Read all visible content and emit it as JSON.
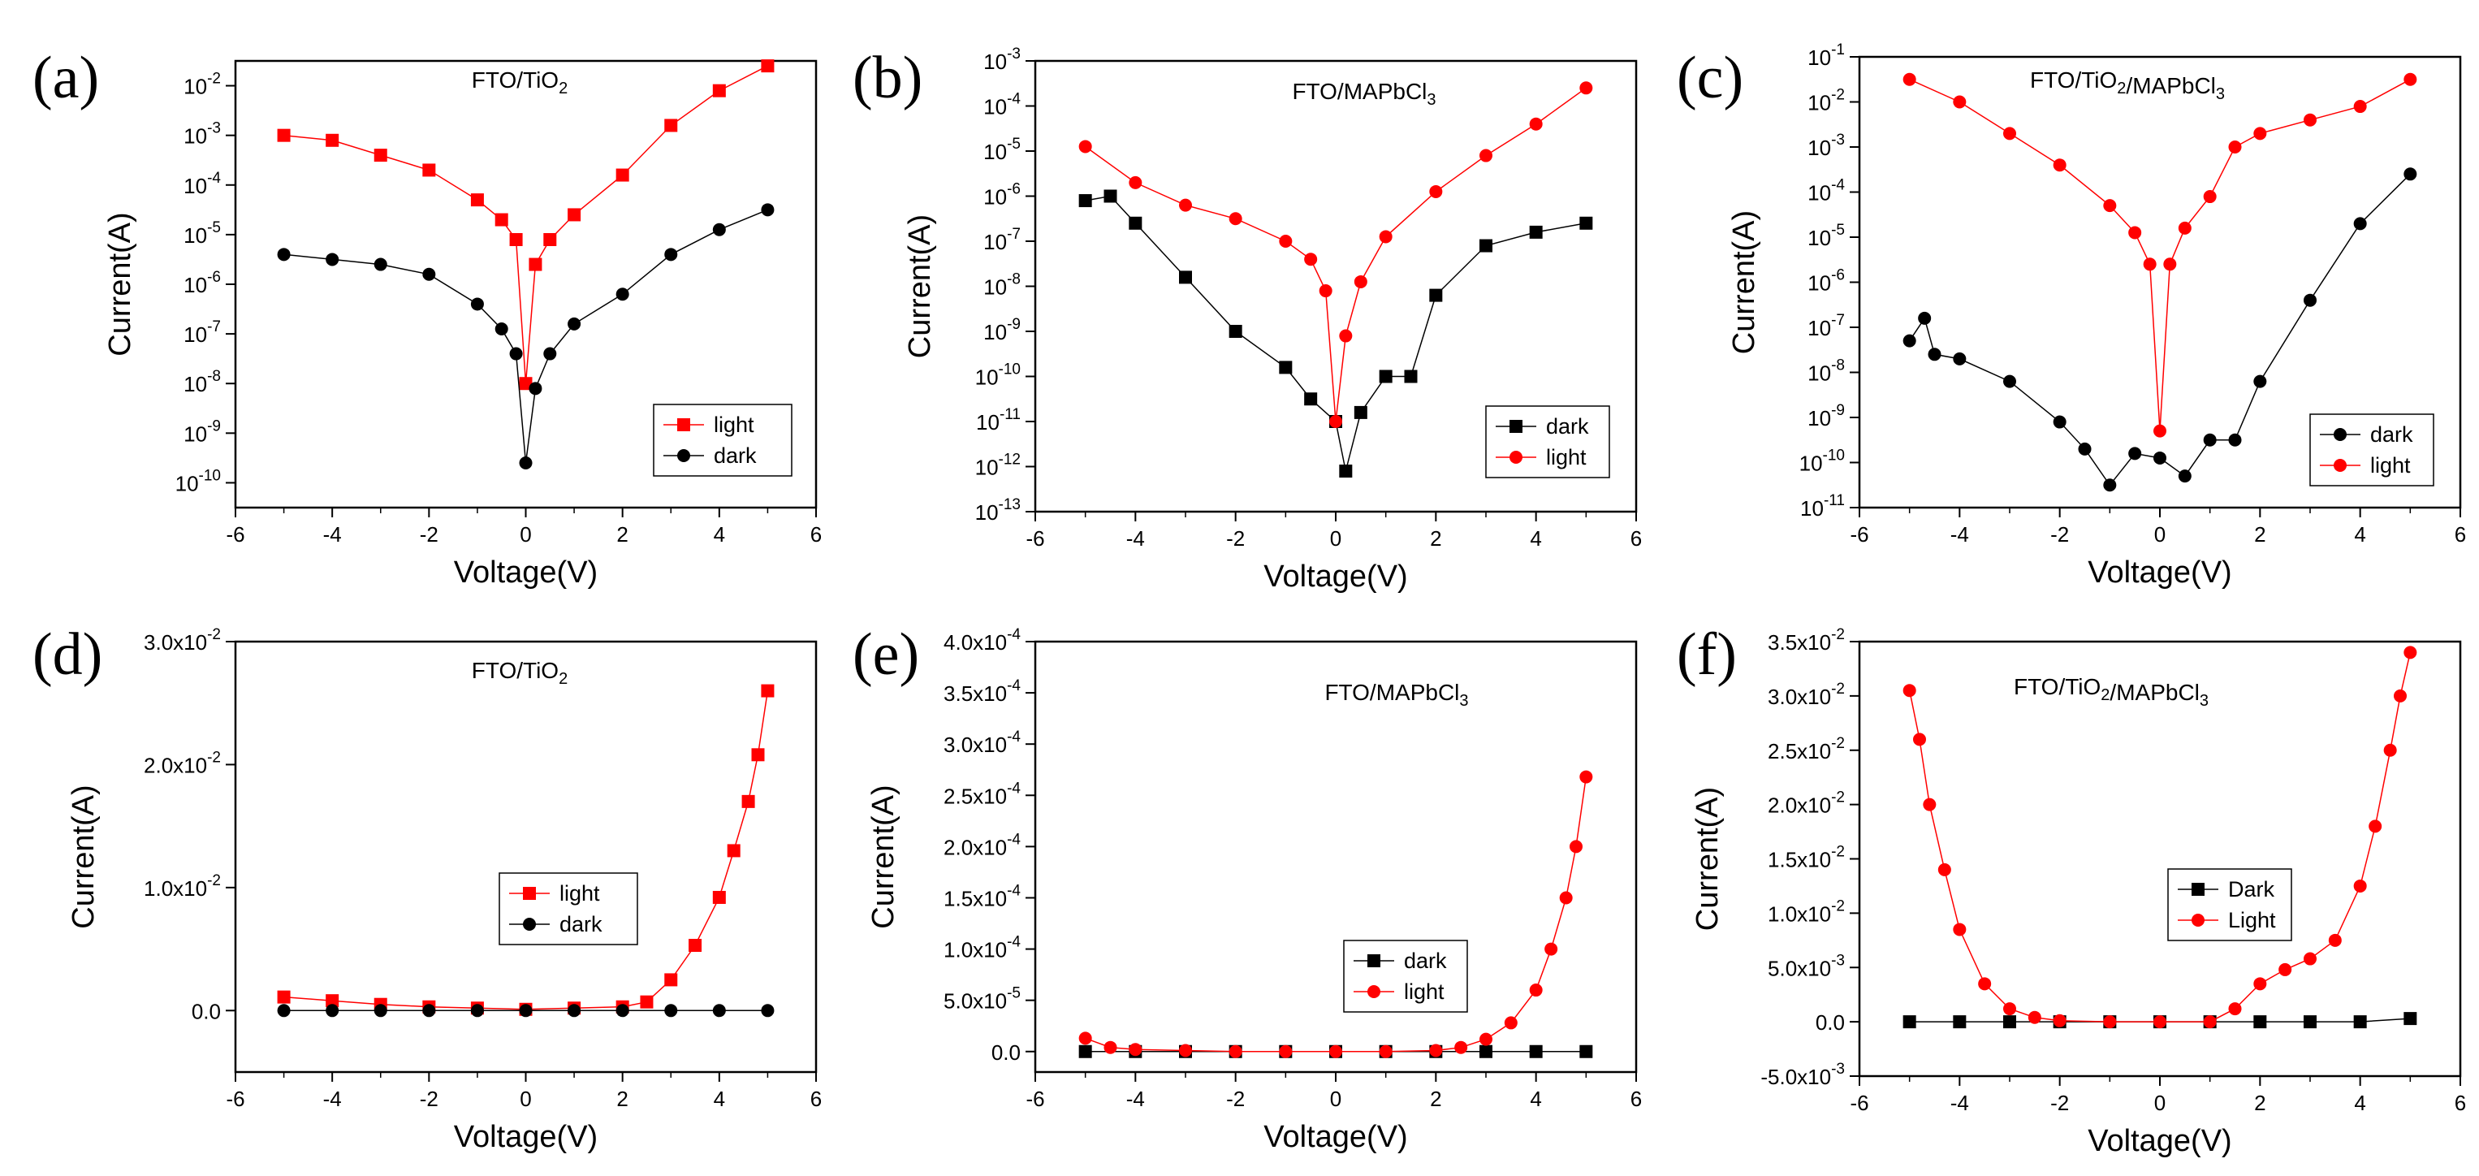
{
  "chart_data": [
    {
      "panel": "(a)",
      "type": "scatter",
      "title": "FTO/TiO2",
      "xlabel": "Voltage(V)",
      "ylabel": "Current(A)",
      "yscale": "log",
      "xlim": [
        -6,
        6
      ],
      "ylim_exp": [
        -10.5,
        -1.5
      ],
      "xticks": [
        "-6",
        "-4",
        "-2",
        "0",
        "2",
        "4",
        "6"
      ],
      "yticks_exp": [
        -10,
        -9,
        -8,
        -7,
        -6,
        -5,
        -4,
        -3,
        -2
      ],
      "legend_position": "bottom-right",
      "series": [
        {
          "name": "light",
          "color": "#ff0000",
          "marker": "square",
          "x": [
            -5,
            -4,
            -3,
            -2,
            -1,
            -0.5,
            -0.2,
            0,
            0.2,
            0.5,
            1,
            2,
            3,
            4,
            5
          ],
          "log10_y": [
            -3,
            -3.1,
            -3.4,
            -3.7,
            -4.3,
            -4.7,
            -5.1,
            -8,
            -5.6,
            -5.1,
            -4.6,
            -3.8,
            -2.8,
            -2.1,
            -1.6
          ]
        },
        {
          "name": "dark",
          "color": "#000000",
          "marker": "circle",
          "x": [
            -5,
            -4,
            -3,
            -2,
            -1,
            -0.5,
            -0.2,
            0,
            0.2,
            0.5,
            1,
            2,
            3,
            4,
            5
          ],
          "log10_y": [
            -5.4,
            -5.5,
            -5.6,
            -5.8,
            -6.4,
            -6.9,
            -7.4,
            -9.6,
            -8.1,
            -7.4,
            -6.8,
            -6.2,
            -5.4,
            -4.9,
            -4.5
          ]
        }
      ]
    },
    {
      "panel": "(b)",
      "type": "scatter",
      "title": "FTO/MAPbCl3",
      "xlabel": "Voltage(V)",
      "ylabel": "Current(A)",
      "yscale": "log",
      "xlim": [
        -6,
        6
      ],
      "ylim_exp": [
        -13,
        -3
      ],
      "xticks": [
        "-6",
        "-4",
        "-2",
        "0",
        "2",
        "4",
        "6"
      ],
      "yticks_exp": [
        -13,
        -12,
        -11,
        -10,
        -9,
        -8,
        -7,
        -6,
        -5,
        -4,
        -3
      ],
      "legend_position": "bottom-right",
      "series": [
        {
          "name": "dark",
          "color": "#000000",
          "marker": "square",
          "x": [
            -5,
            -4.5,
            -4,
            -3,
            -2,
            -1,
            -0.5,
            0,
            0.2,
            0.5,
            1,
            1.5,
            2,
            3,
            4,
            5
          ],
          "log10_y": [
            -6.1,
            -6,
            -6.6,
            -7.8,
            -9,
            -9.8,
            -10.5,
            -11,
            -12.1,
            -10.8,
            -10,
            -10,
            -8.2,
            -7.1,
            -6.8,
            -6.6
          ]
        },
        {
          "name": "light",
          "color": "#ff0000",
          "marker": "circle",
          "x": [
            -5,
            -4,
            -3,
            -2,
            -1,
            -0.5,
            -0.2,
            0,
            0.2,
            0.5,
            1,
            2,
            3,
            4,
            5
          ],
          "log10_y": [
            -4.9,
            -5.7,
            -6.2,
            -6.5,
            -7,
            -7.4,
            -8.1,
            -11,
            -9.1,
            -7.9,
            -6.9,
            -5.9,
            -5.1,
            -4.4,
            -3.6
          ]
        }
      ]
    },
    {
      "panel": "(c)",
      "type": "scatter",
      "title": "FTO/TiO2/MAPbCl3",
      "xlabel": "Voltage(V)",
      "ylabel": "Current(A)",
      "yscale": "log",
      "xlim": [
        -6,
        6
      ],
      "ylim_exp": [
        -11,
        -1
      ],
      "xticks": [
        "-6",
        "-4",
        "-2",
        "0",
        "2",
        "4",
        "6"
      ],
      "yticks_exp": [
        -11,
        -10,
        -9,
        -8,
        -7,
        -6,
        -5,
        -4,
        -3,
        -2,
        -1
      ],
      "legend_position": "bottom-right",
      "series": [
        {
          "name": "dark",
          "color": "#000000",
          "marker": "circle",
          "x": [
            -5,
            -4.7,
            -4.5,
            -4,
            -3,
            -2,
            -1.5,
            -1,
            -0.5,
            0,
            0.5,
            1,
            1.5,
            2,
            3,
            4,
            5
          ],
          "log10_y": [
            -7.3,
            -6.8,
            -7.6,
            -7.7,
            -8.2,
            -9.1,
            -9.7,
            -10.5,
            -9.8,
            -9.9,
            -10.3,
            -9.5,
            -9.5,
            -8.2,
            -6.4,
            -4.7,
            -3.6
          ]
        },
        {
          "name": "light",
          "color": "#ff0000",
          "marker": "circle",
          "x": [
            -5,
            -4,
            -3,
            -2,
            -1,
            -0.5,
            -0.2,
            0,
            0.2,
            0.5,
            1,
            1.5,
            2,
            3,
            4,
            5
          ],
          "log10_y": [
            -1.5,
            -2,
            -2.7,
            -3.4,
            -4.3,
            -4.9,
            -5.6,
            -9.3,
            -5.6,
            -4.8,
            -4.1,
            -3,
            -2.7,
            -2.4,
            -2.1,
            -1.5
          ]
        }
      ]
    },
    {
      "panel": "(d)",
      "type": "scatter",
      "title": "FTO/TiO2",
      "xlabel": "Voltage(V)",
      "ylabel": "Current(A)",
      "yscale": "linear",
      "xlim": [
        -6,
        6
      ],
      "ylim": [
        -0.005,
        0.03
      ],
      "xticks": [
        "-6",
        "-4",
        "-2",
        "0",
        "2",
        "4",
        "6"
      ],
      "yticks": [
        {
          "value": 0,
          "label": "0.0"
        },
        {
          "value": 0.01,
          "label": "1.0x10",
          "exp": "-2"
        },
        {
          "value": 0.02,
          "label": "2.0x10",
          "exp": "-2"
        },
        {
          "value": 0.03,
          "label": "3.0x10",
          "exp": "-2"
        }
      ],
      "legend_position": "center-right",
      "series": [
        {
          "name": "light",
          "color": "#ff0000",
          "marker": "square",
          "x": [
            -5,
            -4,
            -3,
            -2,
            -1,
            0,
            1,
            2,
            2.5,
            3,
            3.5,
            4,
            4.3,
            4.6,
            4.8,
            5
          ],
          "y": [
            0.0011,
            0.0008,
            0.0005,
            0.0003,
            0.0002,
            0.0001,
            0.0002,
            0.0003,
            0.0007,
            0.0025,
            0.0053,
            0.0092,
            0.013,
            0.017,
            0.0208,
            0.026
          ]
        },
        {
          "name": "dark",
          "color": "#000000",
          "marker": "circle",
          "x": [
            -5,
            -4,
            -3,
            -2,
            -1,
            0,
            1,
            2,
            3,
            4,
            5
          ],
          "y": [
            0,
            0,
            0,
            0,
            0,
            0,
            0,
            0,
            0,
            0,
            0
          ]
        }
      ]
    },
    {
      "panel": "(e)",
      "type": "scatter",
      "title": "FTO/MAPbCl3",
      "xlabel": "Voltage(V)",
      "ylabel": "Current(A)",
      "yscale": "linear",
      "xlim": [
        -6,
        6
      ],
      "ylim": [
        -2e-05,
        0.0004
      ],
      "xticks": [
        "-6",
        "-4",
        "-2",
        "0",
        "2",
        "4",
        "6"
      ],
      "yticks": [
        {
          "value": 0,
          "label": "0.0"
        },
        {
          "value": 5e-05,
          "label": "5.0x10",
          "exp": "-5"
        },
        {
          "value": 0.0001,
          "label": "1.0x10",
          "exp": "-4"
        },
        {
          "value": 0.00015,
          "label": "1.5x10",
          "exp": "-4"
        },
        {
          "value": 0.0002,
          "label": "2.0x10",
          "exp": "-4"
        },
        {
          "value": 0.00025,
          "label": "2.5x10",
          "exp": "-4"
        },
        {
          "value": 0.0003,
          "label": "3.0x10",
          "exp": "-4"
        },
        {
          "value": 0.00035,
          "label": "3.5x10",
          "exp": "-4"
        },
        {
          "value": 0.0004,
          "label": "4.0x10",
          "exp": "-4"
        }
      ],
      "legend_position": "bottom-right",
      "series": [
        {
          "name": "dark",
          "color": "#000000",
          "marker": "square",
          "x": [
            -5,
            -4,
            -3,
            -2,
            -1,
            0,
            1,
            2,
            3,
            4,
            5
          ],
          "y": [
            0,
            0,
            0,
            0,
            0,
            0,
            0,
            0,
            0,
            0,
            0
          ]
        },
        {
          "name": "light",
          "color": "#ff0000",
          "marker": "circle",
          "x": [
            -5,
            -4.5,
            -4,
            -3,
            -2,
            -1,
            0,
            1,
            2,
            2.5,
            3,
            3.5,
            4,
            4.3,
            4.6,
            4.8,
            5
          ],
          "y": [
            1.3e-05,
            4e-06,
            2e-06,
            1e-06,
            0,
            0,
            0,
            0,
            1e-06,
            4e-06,
            1.2e-05,
            2.8e-05,
            6e-05,
            0.0001,
            0.00015,
            0.0002,
            0.000268
          ]
        }
      ]
    },
    {
      "panel": "(f)",
      "type": "scatter",
      "title": "FTO/TiO2/MAPbCl3",
      "xlabel": "Voltage(V)",
      "ylabel": "Current(A)",
      "yscale": "linear",
      "xlim": [
        -6,
        6
      ],
      "ylim": [
        -0.005,
        0.035
      ],
      "xticks": [
        "-6",
        "-4",
        "-2",
        "0",
        "2",
        "4",
        "6"
      ],
      "yticks": [
        {
          "value": -0.005,
          "label": "-5.0x10",
          "exp": "-3"
        },
        {
          "value": 0,
          "label": "0.0"
        },
        {
          "value": 0.005,
          "label": "5.0x10",
          "exp": "-3"
        },
        {
          "value": 0.01,
          "label": "1.0x10",
          "exp": "-2"
        },
        {
          "value": 0.015,
          "label": "1.5x10",
          "exp": "-2"
        },
        {
          "value": 0.02,
          "label": "2.0x10",
          "exp": "-2"
        },
        {
          "value": 0.025,
          "label": "2.5x10",
          "exp": "-2"
        },
        {
          "value": 0.03,
          "label": "3.0x10",
          "exp": "-2"
        },
        {
          "value": 0.035,
          "label": "3.5x10",
          "exp": "-2"
        }
      ],
      "legend_position": "center-right",
      "series": [
        {
          "name": "Dark",
          "color": "#000000",
          "marker": "square",
          "x": [
            -5,
            -4,
            -3,
            -2,
            -1,
            0,
            1,
            2,
            3,
            4,
            5
          ],
          "y": [
            0,
            0,
            0,
            0,
            0,
            0,
            0,
            0,
            0,
            0,
            0.0003
          ]
        },
        {
          "name": "Light",
          "color": "#ff0000",
          "marker": "circle",
          "x": [
            -5,
            -4.8,
            -4.6,
            -4.3,
            -4,
            -3.5,
            -3,
            -2.5,
            -2,
            -1,
            0,
            1,
            1.5,
            2,
            2.5,
            3,
            3.5,
            4,
            4.3,
            4.6,
            4.8,
            5
          ],
          "y": [
            0.0305,
            0.026,
            0.02,
            0.014,
            0.0085,
            0.0035,
            0.0012,
            0.0004,
            0.0001,
            0,
            0,
            0,
            0.0012,
            0.0035,
            0.0048,
            0.0058,
            0.0075,
            0.0125,
            0.018,
            0.025,
            0.03,
            0.034
          ]
        }
      ]
    }
  ]
}
